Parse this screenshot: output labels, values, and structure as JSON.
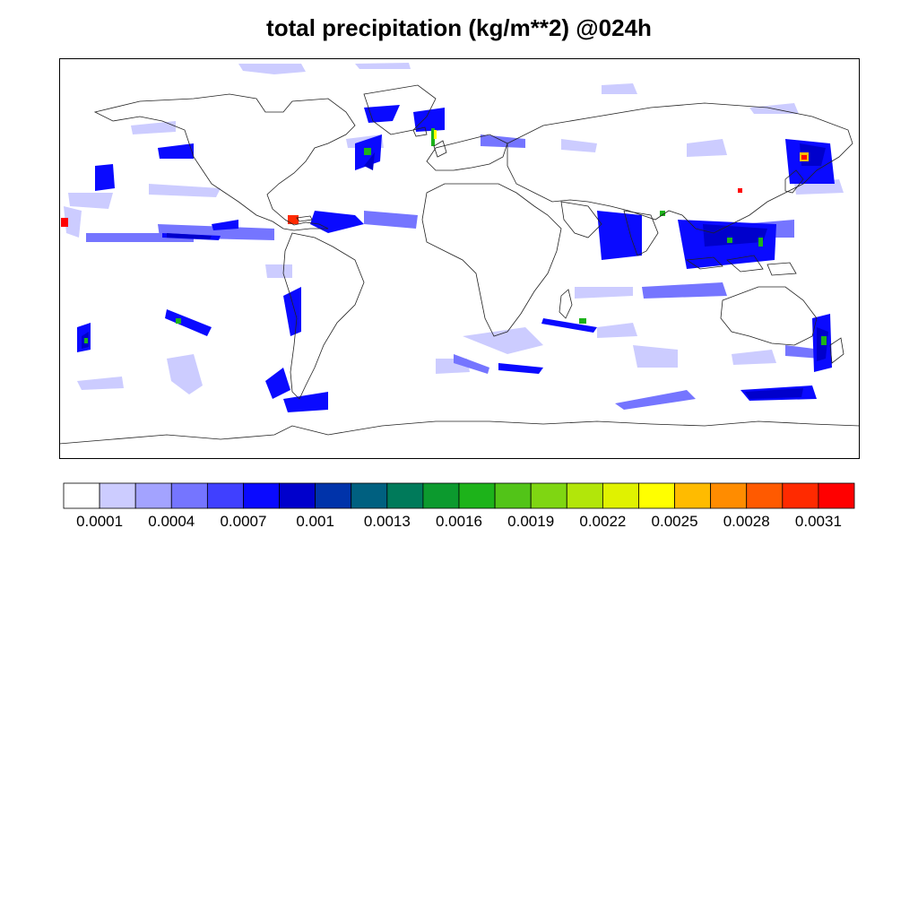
{
  "title": "total precipitation (kg/m**2) @024h",
  "colorbar": {
    "colors": [
      "#ffffff",
      "#ccccff",
      "#a3a3ff",
      "#7575ff",
      "#4040ff",
      "#0a0aff",
      "#0000cc",
      "#0033aa",
      "#006080",
      "#007a5a",
      "#0c9a2e",
      "#1db31a",
      "#52c418",
      "#7fd612",
      "#b2e60a",
      "#e0f200",
      "#ffff00",
      "#ffbb00",
      "#ff8c00",
      "#ff5a00",
      "#ff2a00",
      "#ff0000"
    ],
    "labels": [
      "0.0001",
      "0.0004",
      "0.0007",
      "0.001",
      "0.0013",
      "0.0016",
      "0.0019",
      "0.0022",
      "0.0025",
      "0.0028",
      "0.0031"
    ]
  },
  "map": {
    "projection": "equirectangular",
    "lon_range": [
      -180,
      180
    ],
    "lat_range": [
      -90,
      90
    ]
  }
}
